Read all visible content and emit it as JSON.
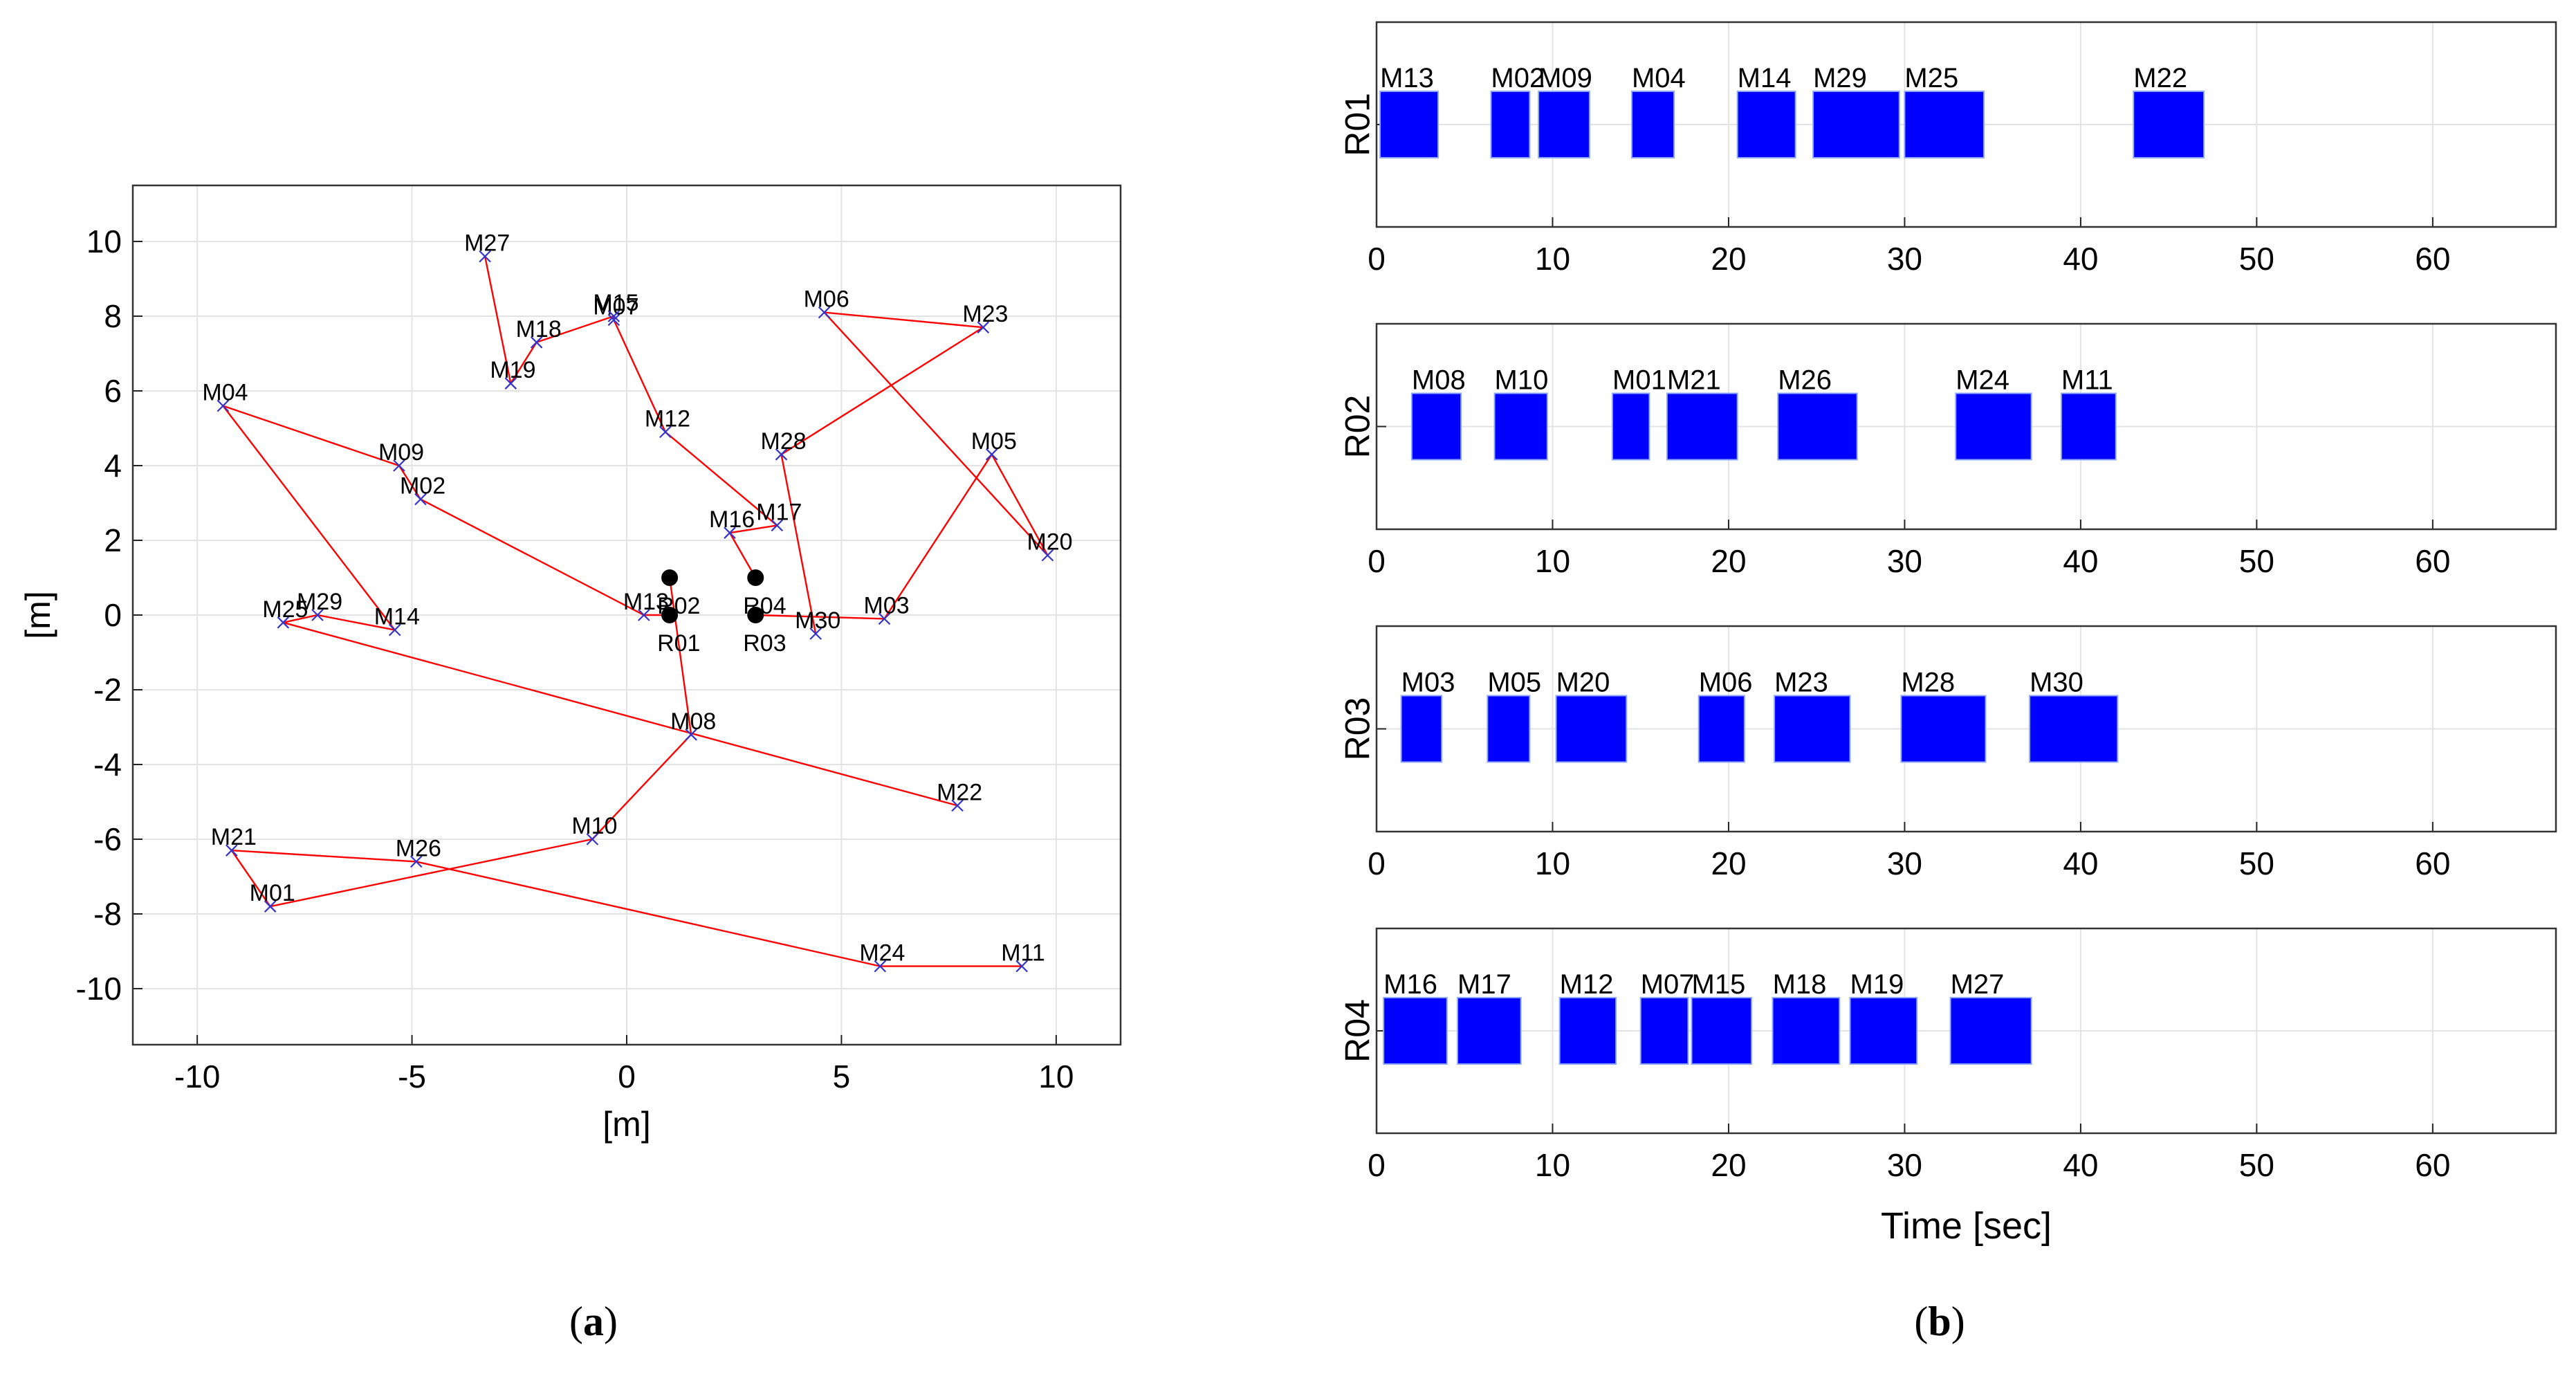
{
  "chart_data": [
    {
      "type": "scatter",
      "panel": "(a)",
      "panel_letter": "a",
      "xlabel": "[m]",
      "ylabel": "[m]",
      "xlim": [
        -11.5,
        11.5
      ],
      "ylim": [
        -11.5,
        11.5
      ],
      "xticks": [
        -10,
        -5,
        0,
        5,
        10
      ],
      "yticks": [
        -10,
        -8,
        -6,
        -4,
        -2,
        0,
        2,
        4,
        6,
        8,
        10
      ],
      "grid": true,
      "colors": {
        "path": "#ff0000",
        "marker": "#3333cc",
        "robot": "#000000"
      },
      "points": [
        {
          "name": "M01",
          "x": -8.3,
          "y": -7.8
        },
        {
          "name": "M02",
          "x": -4.8,
          "y": 3.1
        },
        {
          "name": "M03",
          "x": 6.0,
          "y": -0.1
        },
        {
          "name": "M04",
          "x": -9.4,
          "y": 5.6
        },
        {
          "name": "M05",
          "x": 8.5,
          "y": 4.3
        },
        {
          "name": "M06",
          "x": 4.6,
          "y": 8.1
        },
        {
          "name": "M07",
          "x": -0.3,
          "y": 7.9
        },
        {
          "name": "M08",
          "x": 1.5,
          "y": -3.2
        },
        {
          "name": "M09",
          "x": -5.3,
          "y": 4.0
        },
        {
          "name": "M10",
          "x": -0.8,
          "y": -6.0
        },
        {
          "name": "M11",
          "x": 9.2,
          "y": -9.4
        },
        {
          "name": "M12",
          "x": 0.9,
          "y": 4.9
        },
        {
          "name": "M13",
          "x": 0.4,
          "y": 0.0
        },
        {
          "name": "M14",
          "x": -5.4,
          "y": -0.4
        },
        {
          "name": "M15",
          "x": -0.3,
          "y": 8.0
        },
        {
          "name": "M16",
          "x": 2.4,
          "y": 2.2
        },
        {
          "name": "M17",
          "x": 3.5,
          "y": 2.4
        },
        {
          "name": "M18",
          "x": -2.1,
          "y": 7.3
        },
        {
          "name": "M19",
          "x": -2.7,
          "y": 6.2
        },
        {
          "name": "M20",
          "x": 9.8,
          "y": 1.6
        },
        {
          "name": "M21",
          "x": -9.2,
          "y": -6.3
        },
        {
          "name": "M22",
          "x": 7.7,
          "y": -5.1
        },
        {
          "name": "M23",
          "x": 8.3,
          "y": 7.7
        },
        {
          "name": "M24",
          "x": 5.9,
          "y": -9.4
        },
        {
          "name": "M25",
          "x": -8.0,
          "y": -0.2
        },
        {
          "name": "M26",
          "x": -4.9,
          "y": -6.6
        },
        {
          "name": "M27",
          "x": -3.3,
          "y": 9.6
        },
        {
          "name": "M28",
          "x": 3.6,
          "y": 4.3
        },
        {
          "name": "M29",
          "x": -7.2,
          "y": 0.0
        },
        {
          "name": "M30",
          "x": 4.4,
          "y": -0.5
        }
      ],
      "robots": [
        {
          "name": "R01",
          "x": 1.0,
          "y": 0.0
        },
        {
          "name": "R02",
          "x": 1.0,
          "y": 1.0
        },
        {
          "name": "R03",
          "x": 3.0,
          "y": 0.0
        },
        {
          "name": "R04",
          "x": 3.0,
          "y": 1.0
        }
      ],
      "routes": [
        [
          "R01",
          "M13",
          "M02",
          "M09",
          "M04",
          "M14",
          "M29",
          "M25",
          "M22"
        ],
        [
          "R02",
          "M08",
          "M10",
          "M01",
          "M21",
          "M26",
          "M24",
          "M11"
        ],
        [
          "R03",
          "M03",
          "M05",
          "M20",
          "M06",
          "M23",
          "M28",
          "M30"
        ],
        [
          "R04",
          "M16",
          "M17",
          "M12",
          "M07",
          "M15",
          "M18",
          "M19",
          "M27"
        ]
      ]
    },
    {
      "type": "gantt",
      "panel": "(b)",
      "panel_letter": "b",
      "xlabel": "Time [sec]",
      "xlim": [
        0,
        67
      ],
      "xticks": [
        0,
        10,
        20,
        30,
        40,
        50,
        60
      ],
      "grid": true,
      "colors": {
        "task": "#0000ff",
        "task_edge": "#8fa8ff"
      },
      "rows": [
        {
          "label": "R01",
          "tasks": [
            {
              "name": "M13",
              "start": 0.2,
              "end": 3.5
            },
            {
              "name": "M02",
              "start": 6.5,
              "end": 8.7
            },
            {
              "name": "M09",
              "start": 9.2,
              "end": 12.1
            },
            {
              "name": "M04",
              "start": 14.5,
              "end": 16.9
            },
            {
              "name": "M14",
              "start": 20.5,
              "end": 23.8
            },
            {
              "name": "M29",
              "start": 24.8,
              "end": 29.7
            },
            {
              "name": "M25",
              "start": 30.0,
              "end": 34.5
            },
            {
              "name": "M22",
              "start": 43.0,
              "end": 47.0
            }
          ]
        },
        {
          "label": "R02",
          "tasks": [
            {
              "name": "M08",
              "start": 2.0,
              "end": 4.8
            },
            {
              "name": "M10",
              "start": 6.7,
              "end": 9.7
            },
            {
              "name": "M01",
              "start": 13.4,
              "end": 15.5
            },
            {
              "name": "M21",
              "start": 16.5,
              "end": 20.5
            },
            {
              "name": "M26",
              "start": 22.8,
              "end": 27.3
            },
            {
              "name": "M24",
              "start": 32.9,
              "end": 37.2
            },
            {
              "name": "M11",
              "start": 38.9,
              "end": 42.0
            }
          ]
        },
        {
          "label": "R03",
          "tasks": [
            {
              "name": "M03",
              "start": 1.4,
              "end": 3.7
            },
            {
              "name": "M05",
              "start": 6.3,
              "end": 8.7
            },
            {
              "name": "M20",
              "start": 10.2,
              "end": 14.2
            },
            {
              "name": "M06",
              "start": 18.3,
              "end": 20.9
            },
            {
              "name": "M23",
              "start": 22.6,
              "end": 26.9
            },
            {
              "name": "M28",
              "start": 29.8,
              "end": 34.6
            },
            {
              "name": "M30",
              "start": 37.1,
              "end": 42.1
            }
          ]
        },
        {
          "label": "R04",
          "tasks": [
            {
              "name": "M16",
              "start": 0.4,
              "end": 4.0
            },
            {
              "name": "M17",
              "start": 4.6,
              "end": 8.2
            },
            {
              "name": "M12",
              "start": 10.4,
              "end": 13.6
            },
            {
              "name": "M07",
              "start": 15.0,
              "end": 17.7
            },
            {
              "name": "M15",
              "start": 17.9,
              "end": 21.3
            },
            {
              "name": "M18",
              "start": 22.5,
              "end": 26.3
            },
            {
              "name": "M19",
              "start": 26.9,
              "end": 30.7
            },
            {
              "name": "M27",
              "start": 32.6,
              "end": 37.2
            }
          ]
        }
      ]
    }
  ]
}
